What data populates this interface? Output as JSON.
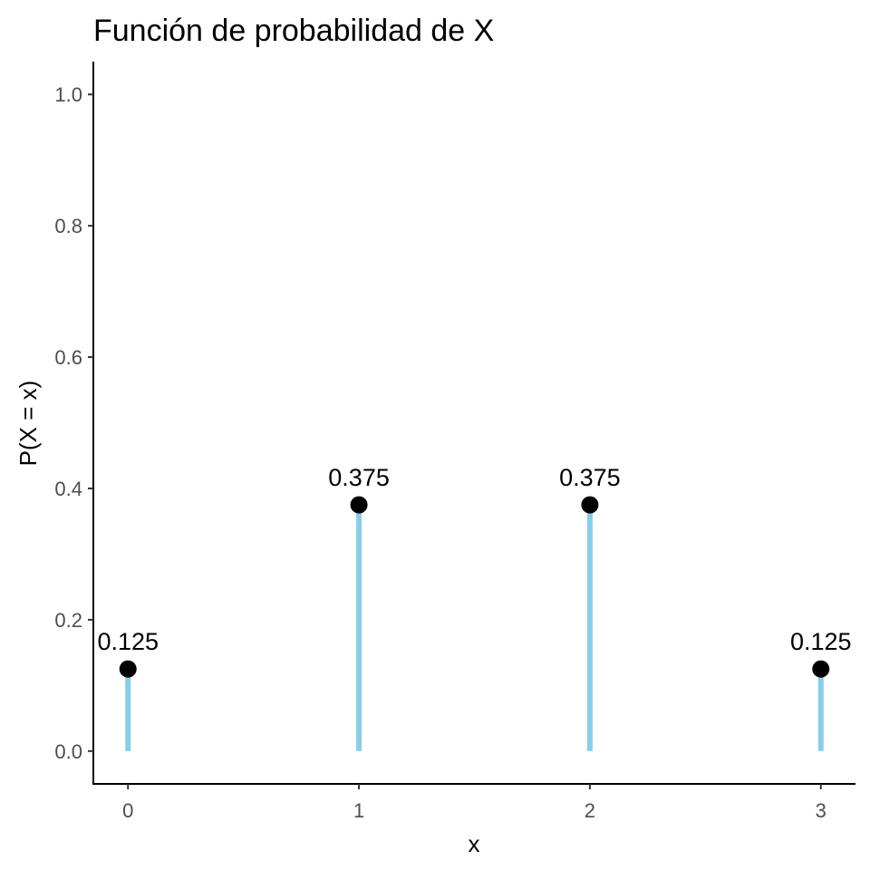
{
  "chart_data": {
    "type": "lollipop",
    "title": "Función de probabilidad de X",
    "xlabel": "x",
    "ylabel": "P(X = x)",
    "x": [
      0,
      1,
      2,
      3
    ],
    "values": [
      0.125,
      0.375,
      0.375,
      0.125
    ],
    "labels": [
      "0.125",
      "0.375",
      "0.375",
      "0.125"
    ],
    "xticks": [
      "0",
      "1",
      "2",
      "3"
    ],
    "yticks": [
      "0.0",
      "0.2",
      "0.4",
      "0.6",
      "0.8",
      "1.0"
    ],
    "xlim": [
      -0.15,
      3.15
    ],
    "ylim": [
      -0.05,
      1.05
    ],
    "grid": false,
    "colors": {
      "stem": "#87ceeb",
      "point": "#000000"
    }
  }
}
